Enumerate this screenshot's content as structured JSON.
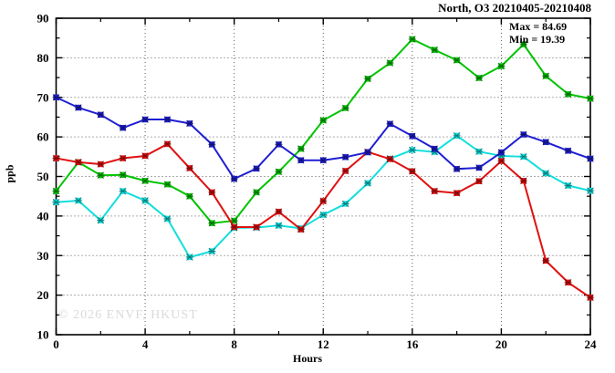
{
  "title": "North, O3 20210405-20210408",
  "annotation": {
    "max": "Max = 84.69",
    "min": "Min = 19.39"
  },
  "watermark": "© 2026 ENVF, HKUST",
  "chart_data": {
    "type": "line",
    "title": "North, O3 20210405-20210408",
    "xlabel": "Hours",
    "ylabel": "ppb",
    "xlim": [
      0,
      24
    ],
    "ylim": [
      10,
      90
    ],
    "x_major_ticks": [
      0,
      4,
      8,
      12,
      16,
      20,
      24
    ],
    "x_minor_step": 2,
    "y_major_ticks": [
      10,
      20,
      30,
      40,
      50,
      60,
      70,
      80,
      90
    ],
    "y_minor_step": 5,
    "grid": "dotted gray at major ticks, mirrored inward ticks on all borders",
    "legend_position": "none",
    "max_value": 84.69,
    "min_value": 19.39,
    "x": [
      0,
      1,
      2,
      3,
      4,
      5,
      6,
      7,
      8,
      9,
      10,
      11,
      12,
      13,
      14,
      15,
      16,
      17,
      18,
      19,
      20,
      21,
      22,
      23,
      24
    ],
    "series": [
      {
        "name": "blue",
        "color": "#1f1fd4",
        "values": [
          70.0,
          67.4,
          65.6,
          62.3,
          64.4,
          64.4,
          63.4,
          58.1,
          49.4,
          52.0,
          58.1,
          54.1,
          54.1,
          54.9,
          56.1,
          63.3,
          60.2,
          57.0,
          51.9,
          52.2,
          56.1,
          60.6,
          58.7,
          56.5,
          54.5
        ]
      },
      {
        "name": "red",
        "color": "#e01010",
        "values": [
          54.6,
          53.6,
          53.1,
          54.6,
          55.2,
          58.2,
          52.1,
          46.0,
          37.2,
          37.2,
          41.1,
          36.6,
          43.8,
          51.4,
          56.2,
          54.4,
          51.3,
          46.3,
          45.8,
          48.8,
          53.9,
          48.9,
          28.7,
          23.2,
          19.39
        ]
      },
      {
        "name": "green",
        "color": "#00c400",
        "values": [
          46.3,
          53.6,
          50.3,
          50.4,
          48.9,
          48.0,
          45.0,
          38.2,
          38.8,
          46.0,
          51.2,
          57.0,
          64.2,
          67.3,
          74.7,
          78.7,
          84.69,
          82.0,
          79.4,
          74.9,
          77.9,
          83.4,
          75.4,
          70.8,
          69.7
        ]
      },
      {
        "name": "cyan",
        "color": "#12dede",
        "values": [
          43.5,
          43.9,
          38.9,
          46.3,
          43.9,
          39.3,
          29.6,
          31.1,
          37.0,
          37.1,
          37.6,
          36.9,
          40.3,
          43.1,
          48.3,
          54.5,
          56.7,
          56.2,
          60.3,
          56.3,
          55.2,
          55.0,
          50.8,
          47.7,
          46.4
        ]
      }
    ]
  }
}
